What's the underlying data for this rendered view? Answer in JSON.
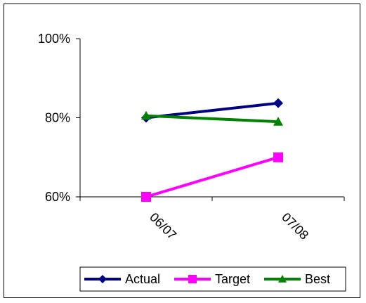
{
  "chart_data": {
    "type": "line",
    "categories": [
      "06/07",
      "07/08"
    ],
    "series": [
      {
        "name": "Actual",
        "values": [
          80,
          83.7
        ],
        "color": "#000080",
        "marker": "diamond"
      },
      {
        "name": "Target",
        "values": [
          60,
          70
        ],
        "color": "#ff00ff",
        "marker": "square"
      },
      {
        "name": "Best",
        "values": [
          80.5,
          79
        ],
        "color": "#008000",
        "marker": "triangle"
      }
    ],
    "ylim": [
      60,
      100
    ],
    "yticks": [
      60,
      80,
      100
    ],
    "ytick_labels": [
      "60%",
      "80%",
      "100%"
    ],
    "grid": false,
    "legend_position": "bottom",
    "title": "",
    "xlabel": "",
    "ylabel": ""
  }
}
